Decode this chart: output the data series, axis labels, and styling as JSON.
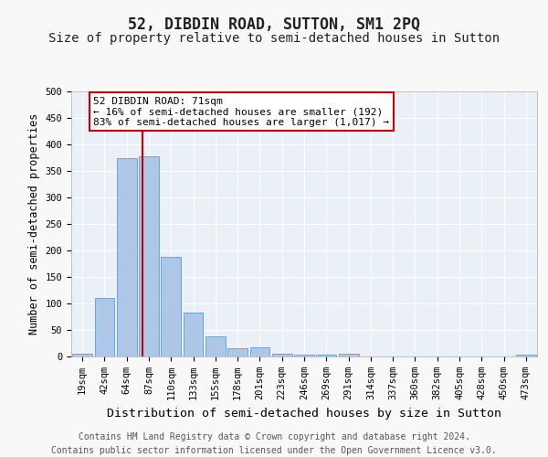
{
  "title": "52, DIBDIN ROAD, SUTTON, SM1 2PQ",
  "subtitle": "Size of property relative to semi-detached houses in Sutton",
  "xlabel": "Distribution of semi-detached houses by size in Sutton",
  "ylabel": "Number of semi-detached properties",
  "bin_labels": [
    "19sqm",
    "42sqm",
    "64sqm",
    "87sqm",
    "110sqm",
    "133sqm",
    "155sqm",
    "178sqm",
    "201sqm",
    "223sqm",
    "246sqm",
    "269sqm",
    "291sqm",
    "314sqm",
    "337sqm",
    "360sqm",
    "382sqm",
    "405sqm",
    "428sqm",
    "450sqm",
    "473sqm"
  ],
  "bar_values": [
    5,
    110,
    375,
    378,
    188,
    82,
    38,
    16,
    18,
    6,
    3,
    4,
    5,
    0,
    0,
    0,
    0,
    0,
    0,
    0,
    3
  ],
  "bar_color": "#aec6e8",
  "bar_edge_color": "#5a9fd4",
  "red_line_x": 2.72,
  "red_line_color": "#cc0000",
  "annotation_text": "52 DIBDIN ROAD: 71sqm\n← 16% of semi-detached houses are smaller (192)\n83% of semi-detached houses are larger (1,017) →",
  "annotation_box_color": "#ffffff",
  "annotation_box_edge_color": "#cc0000",
  "ylim": [
    0,
    500
  ],
  "yticks": [
    0,
    50,
    100,
    150,
    200,
    250,
    300,
    350,
    400,
    450,
    500
  ],
  "bg_color": "#eaf0f8",
  "grid_color": "#ffffff",
  "fig_bg_color": "#f8f8f8",
  "footer_line1": "Contains HM Land Registry data © Crown copyright and database right 2024.",
  "footer_line2": "Contains public sector information licensed under the Open Government Licence v3.0.",
  "title_fontsize": 12,
  "subtitle_fontsize": 10,
  "xlabel_fontsize": 9.5,
  "ylabel_fontsize": 8.5,
  "tick_fontsize": 7.5,
  "annotation_fontsize": 8,
  "footer_fontsize": 7
}
